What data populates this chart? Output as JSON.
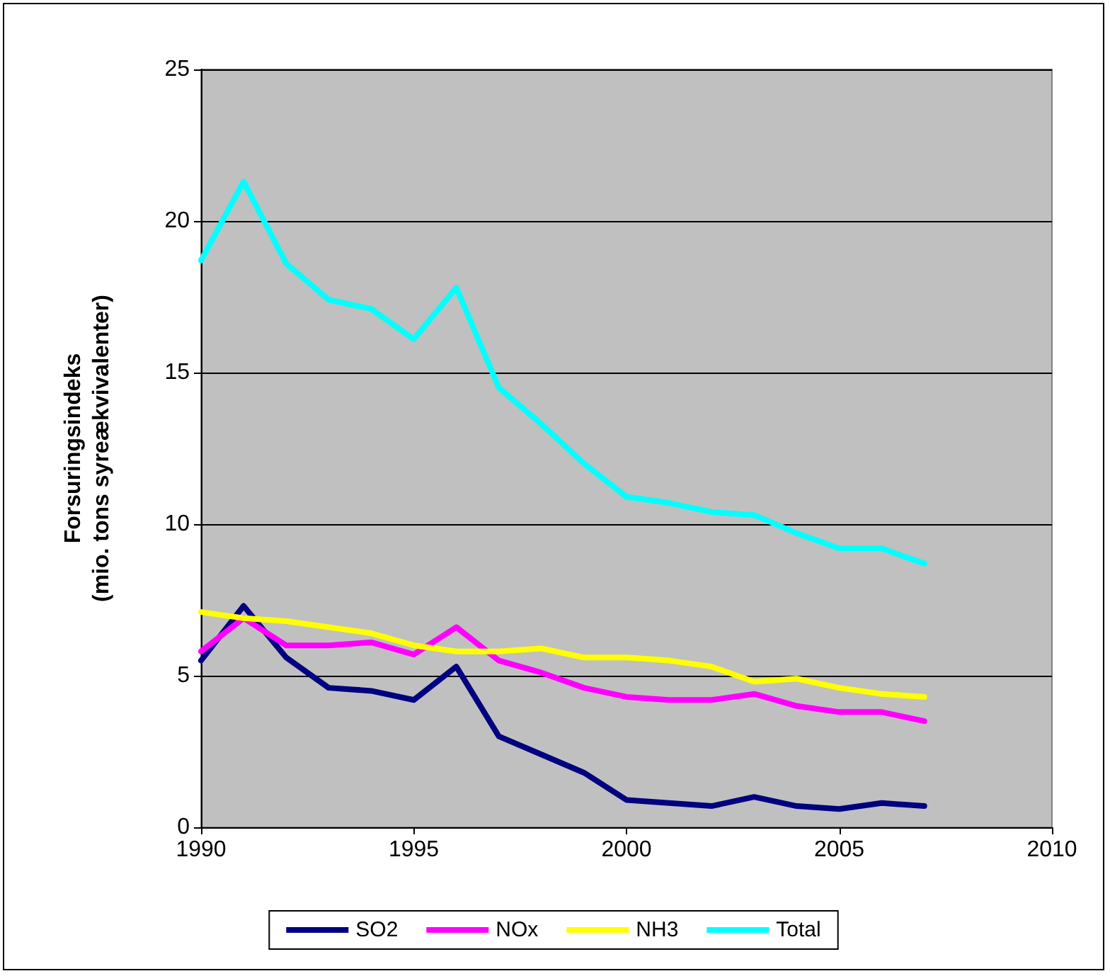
{
  "chart_data": {
    "type": "line",
    "ylabel": "Forsuringsindeks\n(mio. tons syreækvivalenter)",
    "x": [
      1990,
      1991,
      1992,
      1993,
      1994,
      1995,
      1996,
      1997,
      1998,
      1999,
      2000,
      2001,
      2002,
      2003,
      2004,
      2005,
      2006,
      2007
    ],
    "series": [
      {
        "name": "SO2",
        "color": "#000080",
        "values": [
          5.5,
          7.3,
          5.6,
          4.6,
          4.5,
          4.2,
          5.3,
          3.0,
          2.4,
          1.8,
          0.9,
          0.8,
          0.7,
          1.0,
          0.7,
          0.6,
          0.8,
          0.7
        ]
      },
      {
        "name": "NOx",
        "color": "#ff00ff",
        "values": [
          5.8,
          6.9,
          6.0,
          6.0,
          6.1,
          5.7,
          6.6,
          5.5,
          5.1,
          4.6,
          4.3,
          4.2,
          4.2,
          4.4,
          4.0,
          3.8,
          3.8,
          3.5
        ]
      },
      {
        "name": "NH3",
        "color": "#ffff00",
        "values": [
          7.1,
          6.9,
          6.8,
          6.6,
          6.4,
          6.0,
          5.8,
          5.8,
          5.9,
          5.6,
          5.6,
          5.5,
          5.3,
          4.8,
          4.9,
          4.6,
          4.4,
          4.3
        ]
      },
      {
        "name": "Total",
        "color": "#00ffff",
        "values": [
          18.7,
          21.3,
          18.6,
          17.4,
          17.1,
          16.1,
          17.8,
          14.5,
          13.3,
          12.0,
          10.9,
          10.7,
          10.4,
          10.3,
          9.7,
          9.2,
          9.2,
          8.7
        ]
      }
    ],
    "xlim": [
      1990,
      2010
    ],
    "xticks": [
      1990,
      1995,
      2000,
      2005,
      2010
    ],
    "ylim": [
      0,
      25
    ],
    "yticks": [
      0,
      5,
      10,
      15,
      20,
      25
    ],
    "grid": "y",
    "legend": "bottom",
    "marker": "none",
    "line_style": "solid"
  }
}
